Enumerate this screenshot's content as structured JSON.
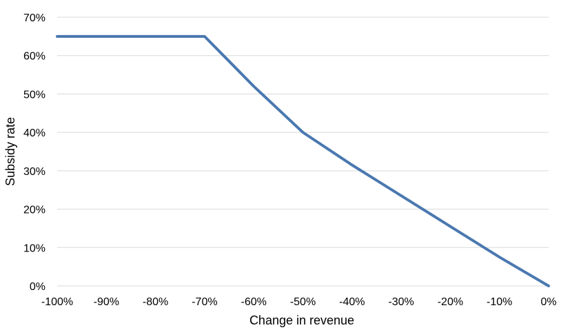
{
  "chart_data": {
    "type": "line",
    "title": "",
    "xlabel": "Change in revenue",
    "ylabel": "Subsidy rate",
    "xlim": [
      -100,
      0
    ],
    "ylim": [
      0,
      70
    ],
    "grid": true,
    "legend": "none",
    "x_ticks": [
      -100,
      -90,
      -80,
      -70,
      -60,
      -50,
      -40,
      -30,
      -20,
      -10,
      0
    ],
    "x_tick_labels": [
      "-100%",
      "-90%",
      "-80%",
      "-70%",
      "-60%",
      "-50%",
      "-40%",
      "-30%",
      "-20%",
      "-10%",
      "0%"
    ],
    "y_ticks": [
      0,
      10,
      20,
      30,
      40,
      50,
      60,
      70
    ],
    "y_tick_labels": [
      "0%",
      "10%",
      "20%",
      "30%",
      "40%",
      "50%",
      "60%",
      "70%"
    ],
    "series": [
      {
        "name": "Subsidy rate",
        "color": "#4a78b0",
        "x": [
          -100,
          -70,
          -65,
          -60,
          -55,
          -50,
          -40,
          -30,
          -20,
          -10,
          0
        ],
        "values": [
          65,
          65,
          58.5,
          52,
          46,
          40,
          31.5,
          23.5,
          15.5,
          7.5,
          0
        ]
      }
    ]
  }
}
